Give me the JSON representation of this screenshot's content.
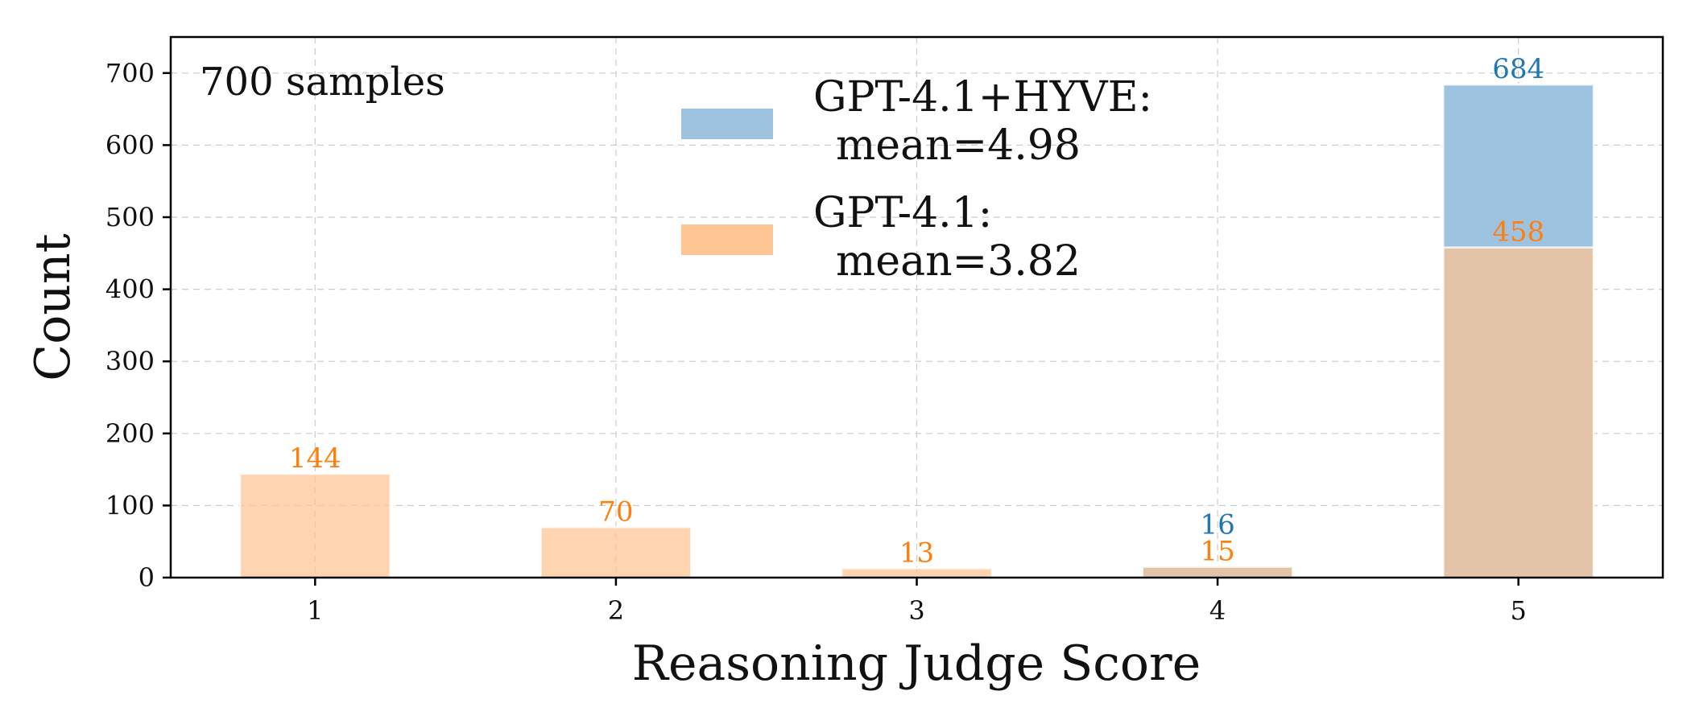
{
  "chart_data": {
    "type": "bar",
    "title": "",
    "xlabel": "Reasoning Judge Score",
    "ylabel": "Count",
    "categories": [
      "1",
      "2",
      "3",
      "4",
      "5"
    ],
    "ylim": [
      0,
      750
    ],
    "yticks": [
      0,
      100,
      200,
      300,
      400,
      500,
      600,
      700
    ],
    "grid": true,
    "annotation": "700 samples",
    "legend_position": "top-center",
    "series": [
      {
        "name": "GPT-4.1+HYVE",
        "legend_line1": "GPT-4.1+HYVE:",
        "legend_line2": "mean=4.98",
        "mean": 4.98,
        "values": [
          0,
          0,
          0,
          16,
          684
        ],
        "labels": [
          "",
          "",
          "",
          "16",
          "684"
        ],
        "color": "#9ec3e1",
        "label_color": "#1f77b4"
      },
      {
        "name": "GPT-4.1",
        "legend_line1": "GPT-4.1:",
        "legend_line2": "mean=3.82",
        "mean": 3.82,
        "values": [
          144,
          70,
          13,
          15,
          458
        ],
        "labels": [
          "144",
          "70",
          "13",
          "15",
          "458"
        ],
        "color": "#ffc593",
        "label_color": "#ff7f0e"
      }
    ]
  }
}
